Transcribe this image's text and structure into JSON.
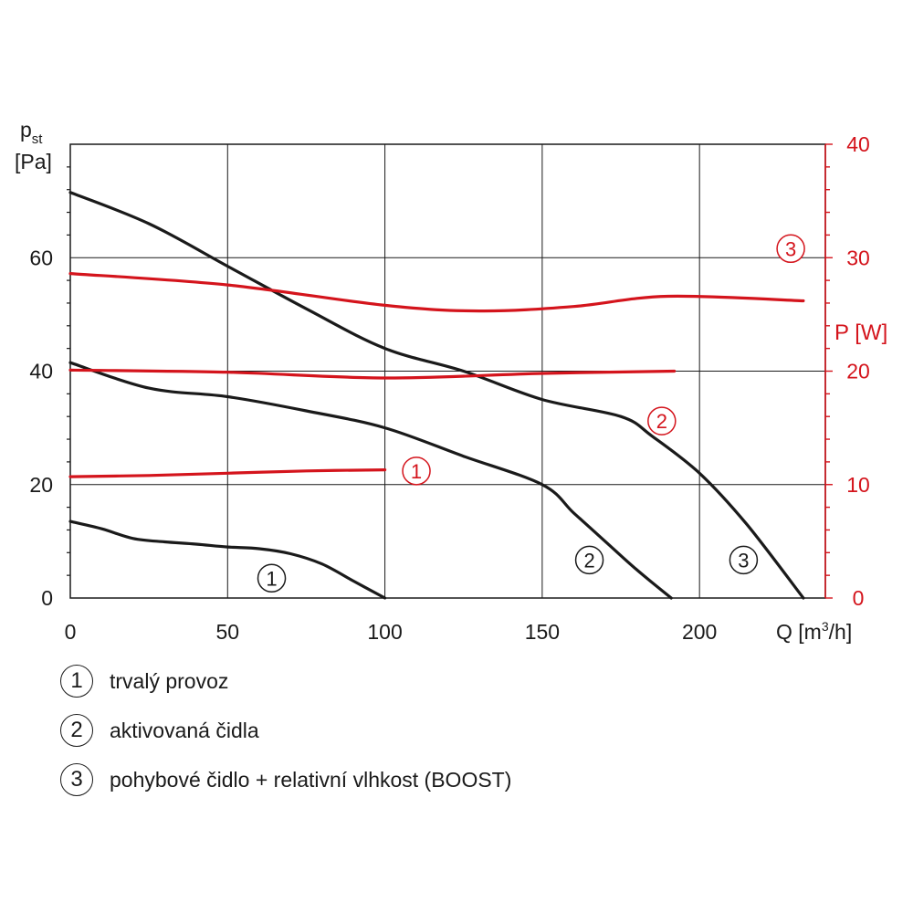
{
  "chart_data": {
    "type": "line",
    "axes": {
      "x": {
        "label_main": "Q [m",
        "label_sup": "3",
        "label_end": "/h]",
        "range": [
          0,
          240
        ],
        "ticks": [
          0,
          50,
          100,
          150,
          200
        ]
      },
      "y_left": {
        "label_line1_main": "p",
        "label_line1_sub": "st",
        "label_line2": "[Pa]",
        "range": [
          0,
          80
        ],
        "ticks": [
          0,
          20,
          40,
          60
        ]
      },
      "y_right": {
        "label": "P [W]",
        "range": [
          0,
          40
        ],
        "ticks": [
          0,
          10,
          20,
          30,
          40
        ],
        "color": "#d4141c"
      }
    },
    "grid": true,
    "series": [
      {
        "id": "1",
        "kind": "pressure",
        "axis": "left",
        "color": "#1a1a1a",
        "x": [
          0,
          10,
          20,
          30,
          40,
          50,
          60,
          70,
          80,
          90,
          100
        ],
        "y": [
          13.5,
          12.2,
          10.5,
          9.9,
          9.5,
          9.0,
          8.7,
          7.8,
          6.0,
          3.0,
          0
        ]
      },
      {
        "id": "2",
        "kind": "pressure",
        "axis": "left",
        "color": "#1a1a1a",
        "x": [
          0,
          25,
          50,
          75,
          100,
          125,
          150,
          160,
          170,
          180,
          191
        ],
        "y": [
          41.5,
          37,
          35.5,
          33,
          30,
          25,
          20,
          15,
          10,
          5,
          0
        ]
      },
      {
        "id": "3",
        "kind": "pressure",
        "axis": "left",
        "color": "#1a1a1a",
        "x": [
          0,
          25,
          50,
          75,
          100,
          125,
          150,
          175,
          185,
          200,
          215,
          233
        ],
        "y": [
          71.5,
          66,
          58.5,
          51,
          44,
          40,
          35,
          32,
          28.5,
          22,
          13,
          0
        ]
      },
      {
        "id": "1",
        "kind": "power",
        "axis": "right",
        "color": "#d4141c",
        "x": [
          0,
          25,
          50,
          75,
          100
        ],
        "y": [
          10.7,
          10.8,
          11.0,
          11.2,
          11.3
        ]
      },
      {
        "id": "2",
        "kind": "power",
        "axis": "right",
        "color": "#d4141c",
        "x": [
          0,
          50,
          100,
          150,
          192
        ],
        "y": [
          20.1,
          19.9,
          19.4,
          19.8,
          20.0
        ]
      },
      {
        "id": "3",
        "kind": "power",
        "axis": "right",
        "color": "#d4141c",
        "x": [
          0,
          50,
          100,
          130,
          160,
          190,
          233
        ],
        "y": [
          28.6,
          27.6,
          25.8,
          25.3,
          25.7,
          26.6,
          26.2
        ]
      }
    ],
    "curve_labels": [
      {
        "text": "1",
        "color": "#1a1a1a",
        "x": 64,
        "y": 3.5,
        "axis": "left"
      },
      {
        "text": "2",
        "color": "#1a1a1a",
        "x": 165,
        "y": 6.7,
        "axis": "left"
      },
      {
        "text": "3",
        "color": "#1a1a1a",
        "x": 214,
        "y": 6.7,
        "axis": "left"
      },
      {
        "text": "1",
        "color": "#d4141c",
        "x": 110,
        "y": 11.2,
        "axis": "right"
      },
      {
        "text": "2",
        "color": "#d4141c",
        "x": 188,
        "y": 15.6,
        "axis": "right"
      },
      {
        "text": "3",
        "color": "#d4141c",
        "x": 229,
        "y": 30.8,
        "axis": "right"
      }
    ]
  },
  "legend": [
    {
      "num": "1",
      "label": "trvalý provoz"
    },
    {
      "num": "2",
      "label": "aktivovaná čidla"
    },
    {
      "num": "3",
      "label": "pohybové čidlo + relativní vlhkost (BOOST)"
    }
  ]
}
